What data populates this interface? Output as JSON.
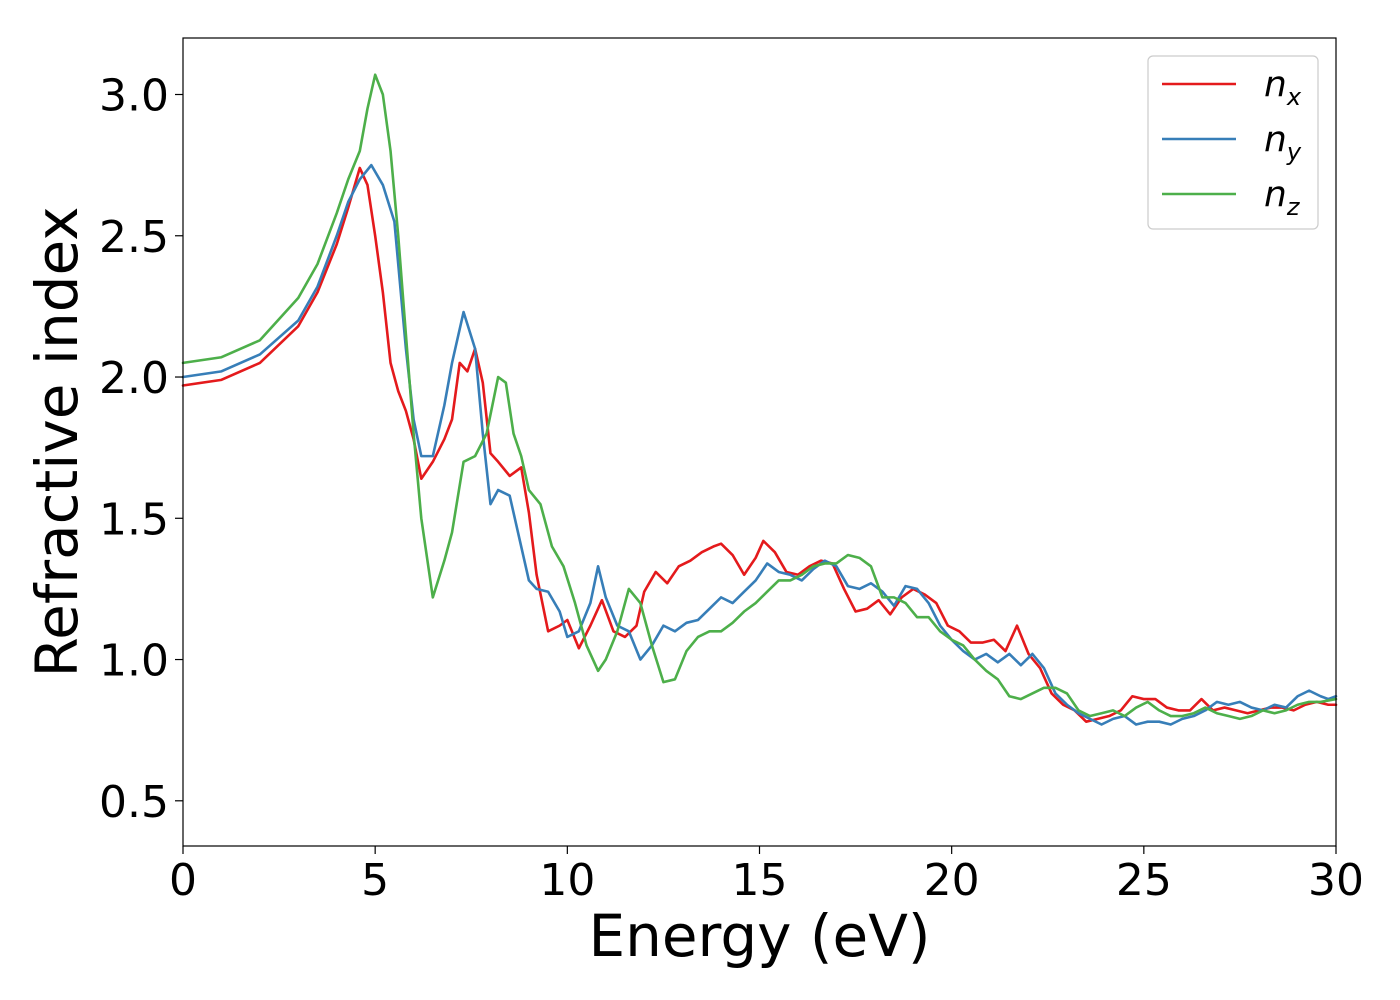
{
  "chart_data": {
    "type": "line",
    "title": "",
    "xlabel": "Energy (eV)",
    "ylabel": "Refractive index",
    "xlim": [
      0,
      30
    ],
    "ylim": [
      0.34,
      3.2
    ],
    "xticks": [
      0,
      5,
      10,
      15,
      20,
      25,
      30
    ],
    "yticks": [
      0.5,
      1.0,
      1.5,
      2.0,
      2.5,
      3.0
    ],
    "xtick_labels": [
      "0",
      "5",
      "10",
      "15",
      "20",
      "25",
      "30"
    ],
    "ytick_labels": [
      "0.5",
      "1.0",
      "1.5",
      "2.0",
      "2.5",
      "3.0"
    ],
    "grid": false,
    "legend_position": "top-right",
    "series": [
      {
        "name": "n_x",
        "legend_base": "n",
        "legend_sub": "x",
        "color": "#e41a1c",
        "x": [
          0,
          1,
          2,
          3,
          3.5,
          4,
          4.3,
          4.6,
          4.8,
          5.0,
          5.2,
          5.4,
          5.6,
          5.8,
          6.0,
          6.2,
          6.5,
          6.8,
          7.0,
          7.2,
          7.4,
          7.6,
          7.8,
          8.0,
          8.2,
          8.5,
          8.8,
          9.0,
          9.2,
          9.5,
          9.8,
          10.0,
          10.3,
          10.6,
          10.9,
          11.2,
          11.5,
          11.8,
          12.0,
          12.3,
          12.6,
          12.9,
          13.2,
          13.5,
          13.8,
          14.0,
          14.3,
          14.6,
          14.9,
          15.1,
          15.4,
          15.7,
          16.0,
          16.3,
          16.6,
          16.9,
          17.2,
          17.5,
          17.8,
          18.1,
          18.4,
          18.7,
          19.0,
          19.3,
          19.6,
          19.9,
          20.2,
          20.5,
          20.8,
          21.1,
          21.4,
          21.7,
          22.0,
          22.3,
          22.6,
          22.9,
          23.2,
          23.5,
          23.8,
          24.1,
          24.4,
          24.7,
          25.0,
          25.3,
          25.6,
          25.9,
          26.2,
          26.5,
          26.8,
          27.1,
          27.4,
          27.7,
          28.0,
          28.3,
          28.6,
          28.9,
          29.2,
          29.5,
          29.8,
          30.0
        ],
        "y": [
          1.97,
          1.99,
          2.05,
          2.18,
          2.3,
          2.47,
          2.6,
          2.74,
          2.68,
          2.5,
          2.3,
          2.05,
          1.95,
          1.88,
          1.78,
          1.64,
          1.7,
          1.78,
          1.85,
          2.05,
          2.02,
          2.1,
          1.98,
          1.73,
          1.7,
          1.65,
          1.68,
          1.52,
          1.3,
          1.1,
          1.12,
          1.14,
          1.04,
          1.12,
          1.21,
          1.1,
          1.08,
          1.12,
          1.24,
          1.31,
          1.27,
          1.33,
          1.35,
          1.38,
          1.4,
          1.41,
          1.37,
          1.3,
          1.36,
          1.42,
          1.38,
          1.31,
          1.3,
          1.33,
          1.35,
          1.34,
          1.25,
          1.17,
          1.18,
          1.21,
          1.16,
          1.22,
          1.25,
          1.23,
          1.2,
          1.12,
          1.1,
          1.06,
          1.06,
          1.07,
          1.03,
          1.12,
          1.02,
          0.97,
          0.88,
          0.84,
          0.82,
          0.78,
          0.79,
          0.8,
          0.82,
          0.87,
          0.86,
          0.86,
          0.83,
          0.82,
          0.82,
          0.86,
          0.82,
          0.83,
          0.82,
          0.81,
          0.82,
          0.83,
          0.83,
          0.82,
          0.84,
          0.85,
          0.84,
          0.84
        ]
      },
      {
        "name": "n_y",
        "legend_base": "n",
        "legend_sub": "y",
        "color": "#377eb8",
        "x": [
          0,
          1,
          2,
          3,
          3.5,
          4,
          4.3,
          4.6,
          4.9,
          5.2,
          5.5,
          5.8,
          6.0,
          6.2,
          6.5,
          6.8,
          7.0,
          7.3,
          7.6,
          7.8,
          8.0,
          8.2,
          8.5,
          8.8,
          9.0,
          9.2,
          9.5,
          9.8,
          10.0,
          10.3,
          10.6,
          10.8,
          11.0,
          11.3,
          11.6,
          11.9,
          12.2,
          12.5,
          12.8,
          13.1,
          13.4,
          13.7,
          14.0,
          14.3,
          14.6,
          14.9,
          15.2,
          15.5,
          15.8,
          16.1,
          16.4,
          16.7,
          17.0,
          17.3,
          17.6,
          17.9,
          18.2,
          18.5,
          18.8,
          19.1,
          19.4,
          19.7,
          20.0,
          20.3,
          20.6,
          20.9,
          21.2,
          21.5,
          21.8,
          22.1,
          22.4,
          22.7,
          23.0,
          23.3,
          23.6,
          23.9,
          24.2,
          24.5,
          24.8,
          25.1,
          25.4,
          25.7,
          26.0,
          26.3,
          26.6,
          26.9,
          27.2,
          27.5,
          27.8,
          28.1,
          28.4,
          28.7,
          29.0,
          29.3,
          29.6,
          29.8,
          30.0
        ],
        "y": [
          2.0,
          2.02,
          2.08,
          2.2,
          2.32,
          2.5,
          2.62,
          2.7,
          2.75,
          2.68,
          2.55,
          2.1,
          1.85,
          1.72,
          1.72,
          1.9,
          2.05,
          2.23,
          2.1,
          1.8,
          1.55,
          1.6,
          1.58,
          1.4,
          1.28,
          1.25,
          1.24,
          1.17,
          1.08,
          1.1,
          1.2,
          1.33,
          1.22,
          1.12,
          1.1,
          1.0,
          1.05,
          1.12,
          1.1,
          1.13,
          1.14,
          1.18,
          1.22,
          1.2,
          1.24,
          1.28,
          1.34,
          1.31,
          1.3,
          1.28,
          1.32,
          1.35,
          1.33,
          1.26,
          1.25,
          1.27,
          1.24,
          1.19,
          1.26,
          1.25,
          1.2,
          1.12,
          1.07,
          1.03,
          1.0,
          1.02,
          0.99,
          1.02,
          0.98,
          1.02,
          0.97,
          0.88,
          0.84,
          0.81,
          0.79,
          0.77,
          0.79,
          0.8,
          0.77,
          0.78,
          0.78,
          0.77,
          0.79,
          0.8,
          0.82,
          0.85,
          0.84,
          0.85,
          0.83,
          0.82,
          0.84,
          0.83,
          0.87,
          0.89,
          0.87,
          0.86,
          0.87
        ]
      },
      {
        "name": "n_z",
        "legend_base": "n",
        "legend_sub": "z",
        "color": "#4daf4a",
        "x": [
          0,
          1,
          2,
          3,
          3.5,
          4,
          4.3,
          4.6,
          4.8,
          5.0,
          5.2,
          5.4,
          5.6,
          5.8,
          6.0,
          6.2,
          6.5,
          6.8,
          7.0,
          7.3,
          7.6,
          7.9,
          8.2,
          8.4,
          8.6,
          8.8,
          9.0,
          9.3,
          9.6,
          9.9,
          10.2,
          10.5,
          10.8,
          11.0,
          11.3,
          11.6,
          11.9,
          12.2,
          12.5,
          12.8,
          13.1,
          13.4,
          13.7,
          14.0,
          14.3,
          14.6,
          14.9,
          15.2,
          15.5,
          15.8,
          16.1,
          16.4,
          16.7,
          17.0,
          17.3,
          17.6,
          17.9,
          18.2,
          18.5,
          18.8,
          19.1,
          19.4,
          19.7,
          20.0,
          20.3,
          20.6,
          20.9,
          21.2,
          21.5,
          21.8,
          22.1,
          22.4,
          22.7,
          23.0,
          23.3,
          23.6,
          23.9,
          24.2,
          24.5,
          24.8,
          25.1,
          25.4,
          25.7,
          26.0,
          26.3,
          26.6,
          26.9,
          27.2,
          27.5,
          27.8,
          28.1,
          28.4,
          28.7,
          29.0,
          29.3,
          29.6,
          30.0
        ],
        "y": [
          2.05,
          2.07,
          2.13,
          2.28,
          2.4,
          2.58,
          2.7,
          2.8,
          2.95,
          3.07,
          3.0,
          2.8,
          2.5,
          2.15,
          1.8,
          1.5,
          1.22,
          1.35,
          1.45,
          1.7,
          1.72,
          1.8,
          2.0,
          1.98,
          1.8,
          1.72,
          1.6,
          1.55,
          1.4,
          1.33,
          1.2,
          1.05,
          0.96,
          1.0,
          1.1,
          1.25,
          1.2,
          1.05,
          0.92,
          0.93,
          1.03,
          1.08,
          1.1,
          1.1,
          1.13,
          1.17,
          1.2,
          1.24,
          1.28,
          1.28,
          1.3,
          1.33,
          1.34,
          1.34,
          1.37,
          1.36,
          1.33,
          1.22,
          1.22,
          1.2,
          1.15,
          1.15,
          1.1,
          1.07,
          1.05,
          1.0,
          0.96,
          0.93,
          0.87,
          0.86,
          0.88,
          0.9,
          0.9,
          0.88,
          0.82,
          0.8,
          0.81,
          0.82,
          0.8,
          0.83,
          0.85,
          0.82,
          0.8,
          0.8,
          0.81,
          0.83,
          0.81,
          0.8,
          0.79,
          0.8,
          0.82,
          0.81,
          0.82,
          0.84,
          0.85,
          0.85,
          0.86
        ]
      }
    ]
  }
}
